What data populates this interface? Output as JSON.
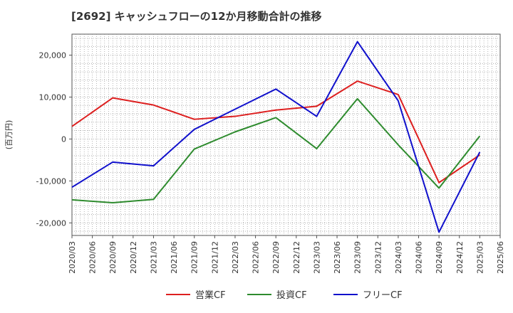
{
  "chart_data": {
    "type": "line",
    "title": "[2692]  キャッシュフローの12か月移動合計の推移",
    "ylabel": "(百万円)",
    "xlabel": "",
    "ylim": [
      -23000,
      25000
    ],
    "yticks": [
      20000,
      10000,
      0,
      -10000,
      -20000
    ],
    "ytick_labels": [
      "20,000",
      "10,000",
      "0",
      "-10,000",
      "-20,000"
    ],
    "x_tick_labels": [
      "2020/03",
      "2020/06",
      "2020/09",
      "2020/12",
      "2021/03",
      "2021/06",
      "2021/09",
      "2021/12",
      "2022/03",
      "2022/06",
      "2022/09",
      "2022/12",
      "2023/03",
      "2023/06",
      "2023/09",
      "2023/12",
      "2024/03",
      "2024/06",
      "2024/09",
      "2024/12",
      "2025/03",
      "2025/06"
    ],
    "x_point_indices": [
      0,
      2,
      4,
      6,
      8,
      10,
      12,
      14,
      16,
      18,
      20
    ],
    "series": [
      {
        "name": "営業CF",
        "color": "#dd1f1f",
        "values": [
          3000,
          9800,
          8100,
          4700,
          5400,
          6900,
          7800,
          13800,
          10600,
          -10400,
          -3800
        ]
      },
      {
        "name": "投資CF",
        "color": "#2e8b2e",
        "values": [
          -14500,
          -15200,
          -14400,
          -2400,
          1700,
          5100,
          -2300,
          9600,
          -1400,
          -11700,
          700
        ]
      },
      {
        "name": "フリーCF",
        "color": "#1010cc",
        "values": [
          -11500,
          -5500,
          -6400,
          2300,
          7100,
          11900,
          5400,
          23200,
          9100,
          -22200,
          -3100
        ]
      }
    ],
    "grid": true,
    "legend_position": "bottom"
  }
}
